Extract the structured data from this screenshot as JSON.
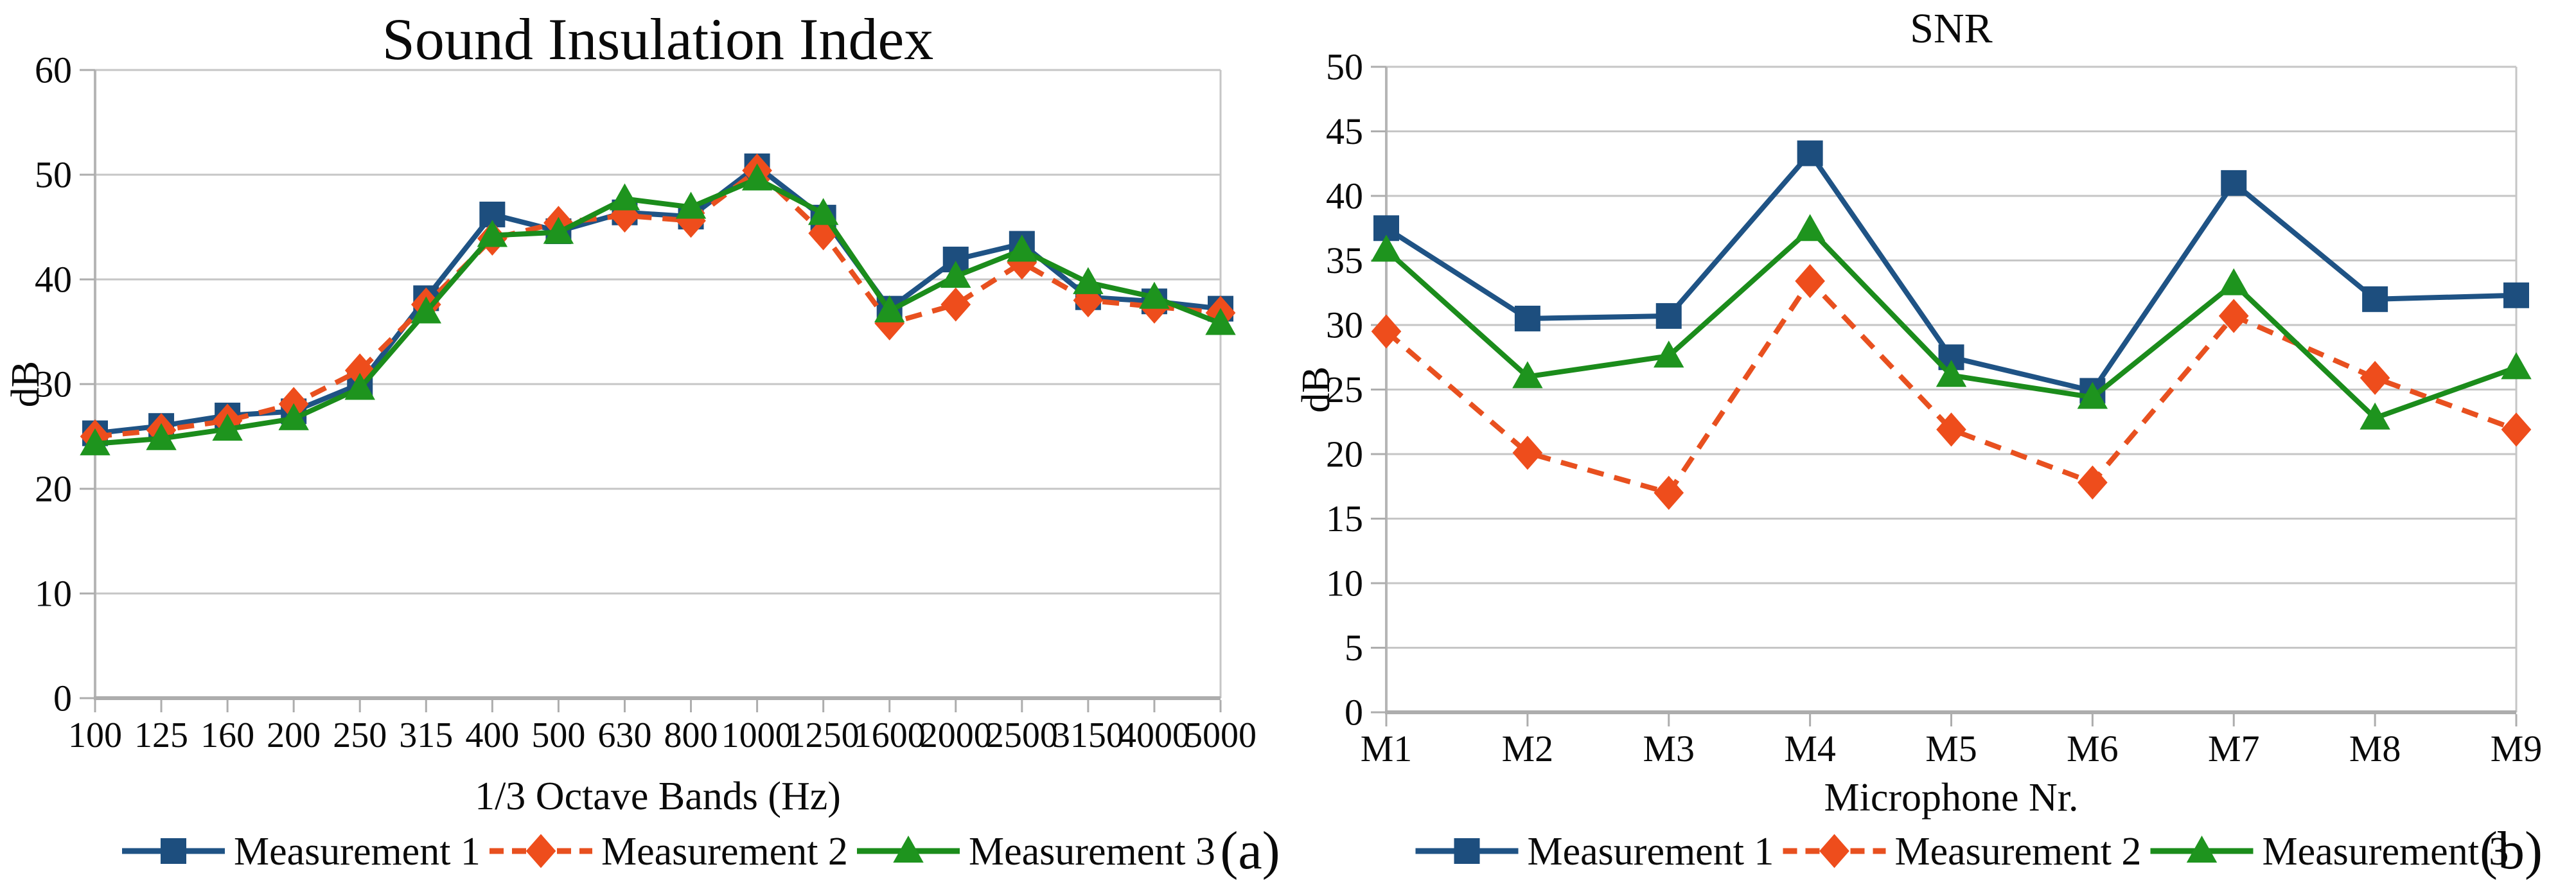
{
  "page": {
    "figure_type": "two-panel line chart figure"
  },
  "colors": {
    "measurement1": "#1F5385",
    "measurement1_marker": "#1D4E7E",
    "measurement2": "#E8501F",
    "measurement2_marker": "#EE4D1C",
    "measurement3": "#1B8C1B",
    "measurement3_marker": "#1E941E",
    "grid": "#C6C6C6",
    "axis": "#ADADAD",
    "text": "#0A0A0A"
  },
  "chart_data": [
    {
      "type": "line",
      "title": "Sound Insulation Index",
      "xlabel": "1/3 Octave Bands (Hz)",
      "ylabel": "dB",
      "panel_label": "(a)",
      "ylim": [
        0,
        60
      ],
      "yticks": [
        0,
        10,
        20,
        30,
        40,
        50,
        60
      ],
      "grid": true,
      "legend_position": "bottom",
      "categories": [
        "100",
        "125",
        "160",
        "200",
        "250",
        "315",
        "400",
        "500",
        "630",
        "800",
        "1000",
        "1250",
        "1600",
        "2000",
        "2500",
        "3150",
        "4000",
        "5000"
      ],
      "series": [
        {
          "name": "Measurement 1",
          "marker": "square",
          "line": "solid",
          "color_key": "measurement1",
          "marker_color_key": "measurement1_marker",
          "values": [
            25.3,
            26.0,
            27.0,
            27.4,
            30.0,
            38.2,
            46.2,
            44.6,
            46.4,
            46.0,
            50.8,
            45.9,
            37.2,
            41.9,
            43.4,
            38.3,
            37.9,
            37.2
          ]
        },
        {
          "name": "Measurement 2",
          "marker": "diamond",
          "line": "dashed",
          "color_key": "measurement2",
          "marker_color_key": "measurement2_marker",
          "values": [
            25.0,
            25.6,
            26.5,
            28.1,
            31.3,
            37.6,
            43.9,
            45.4,
            46.1,
            45.6,
            50.4,
            44.4,
            35.8,
            37.6,
            41.6,
            38.0,
            37.4,
            36.8
          ]
        },
        {
          "name": "Measurement 3",
          "marker": "triangle",
          "line": "solid",
          "color_key": "measurement3",
          "marker_color_key": "measurement3_marker",
          "values": [
            24.3,
            24.8,
            25.7,
            26.7,
            29.6,
            36.9,
            44.2,
            44.5,
            47.7,
            46.9,
            49.6,
            46.3,
            37.0,
            40.3,
            42.8,
            39.7,
            38.3,
            35.8
          ]
        }
      ]
    },
    {
      "type": "line",
      "title": "SNR",
      "xlabel": "Microphone Nr.",
      "ylabel": "dB",
      "panel_label": "(b)",
      "ylim": [
        0,
        50
      ],
      "yticks": [
        0,
        5,
        10,
        15,
        20,
        25,
        30,
        35,
        40,
        45,
        50
      ],
      "grid": true,
      "legend_position": "bottom",
      "categories": [
        "M1",
        "M2",
        "M3",
        "M4",
        "M5",
        "M6",
        "M7",
        "M8",
        "M9"
      ],
      "series": [
        {
          "name": "Measurement 1",
          "marker": "square",
          "line": "solid",
          "color_key": "measurement1",
          "marker_color_key": "measurement1_marker",
          "values": [
            37.5,
            30.5,
            30.7,
            43.3,
            27.5,
            24.9,
            41.0,
            32.0,
            32.3
          ]
        },
        {
          "name": "Measurement 2",
          "marker": "diamond",
          "line": "dashed",
          "color_key": "measurement2",
          "marker_color_key": "measurement2_marker",
          "values": [
            29.5,
            20.1,
            17.0,
            33.4,
            21.9,
            17.8,
            30.7,
            25.9,
            21.9
          ]
        },
        {
          "name": "Measurement 3",
          "marker": "triangle",
          "line": "solid",
          "color_key": "measurement3",
          "marker_color_key": "measurement3_marker",
          "values": [
            35.8,
            26.0,
            27.6,
            37.4,
            26.1,
            24.4,
            33.2,
            22.8,
            26.7
          ]
        }
      ]
    }
  ]
}
